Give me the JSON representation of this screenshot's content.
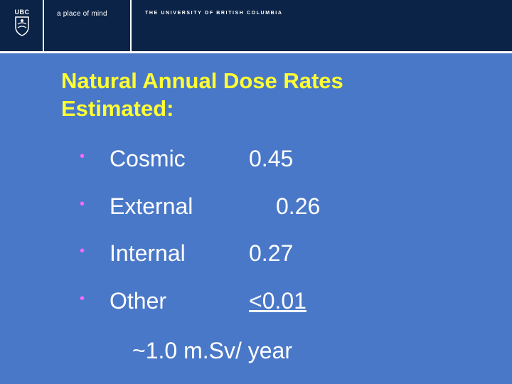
{
  "header": {
    "logo_text": "UBC",
    "tagline": "a place of mind",
    "university": "THE UNIVERSITY OF BRITISH COLUMBIA"
  },
  "slide": {
    "title_line1": "Natural Annual Dose Rates",
    "title_line2": "Estimated:",
    "bullet_glyph": "•",
    "items": [
      {
        "label": "Cosmic",
        "value": "0.45"
      },
      {
        "label": "External",
        "value": "0.26"
      },
      {
        "label": "Internal",
        "value": "0.27"
      },
      {
        "label": "Other",
        "value": "<0.01"
      }
    ],
    "summary": "~1.0 m.Sv/ year"
  },
  "colors": {
    "background": "#4a78c8",
    "header_bg": "#0b2346",
    "title": "#ffff33",
    "bullet": "#ff66ff",
    "text": "#ffffff"
  }
}
